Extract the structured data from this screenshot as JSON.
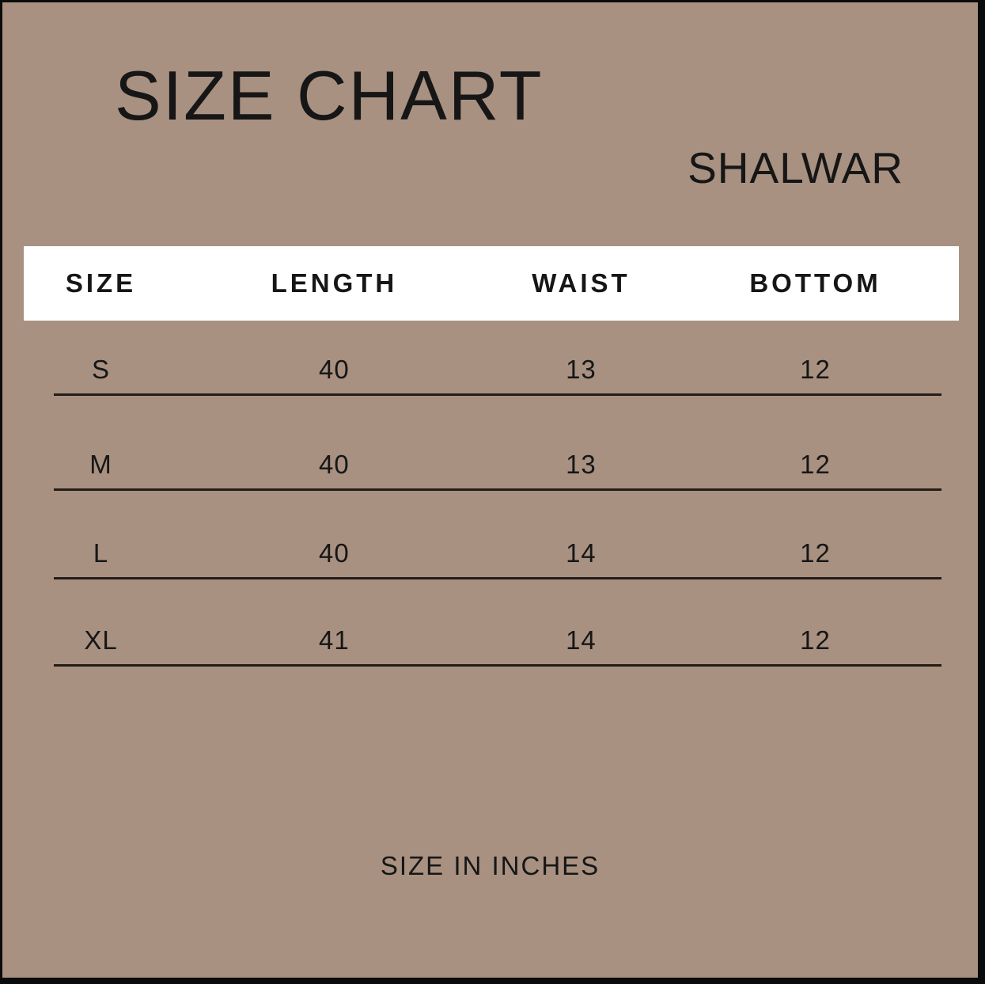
{
  "page": {
    "title": "SIZE CHART",
    "subtitle": "SHALWAR",
    "footnote": "SIZE IN INCHES"
  },
  "colors": {
    "background": "#a89181",
    "header_bar": "#ffffff",
    "text": "#161616",
    "divider": "#241c16",
    "frame_border": "#0b0b0b"
  },
  "chart_data": {
    "type": "table",
    "title": "SIZE CHART",
    "subtitle": "SHALWAR",
    "units_note": "SIZE IN INCHES",
    "columns": [
      "SIZE",
      "LENGTH",
      "WAIST",
      "BOTTOM"
    ],
    "column_keys": [
      "size",
      "length",
      "waist",
      "bottom"
    ],
    "rows": [
      {
        "size": "S",
        "length": "40",
        "waist": "13",
        "bottom": "12"
      },
      {
        "size": "M",
        "length": "40",
        "waist": "13",
        "bottom": "12"
      },
      {
        "size": "L",
        "length": "40",
        "waist": "14",
        "bottom": "12"
      },
      {
        "size": "XL",
        "length": "41",
        "waist": "14",
        "bottom": "12"
      }
    ]
  }
}
